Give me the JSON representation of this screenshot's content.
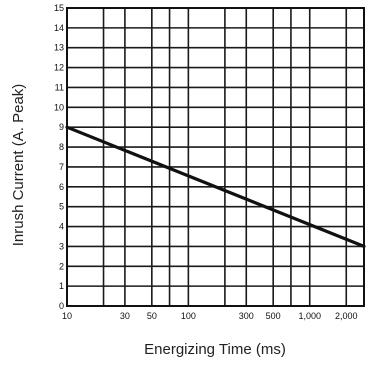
{
  "chart_data": {
    "type": "line",
    "title": "",
    "xlabel": "Energizing Time (ms)",
    "ylabel": "Inrush Current (A. Peak)",
    "x_scale": "log",
    "xlim": [
      10,
      2800
    ],
    "ylim": [
      0,
      15
    ],
    "x_gridlines": [
      10,
      20,
      30,
      50,
      70,
      100,
      200,
      300,
      500,
      700,
      1000,
      2000
    ],
    "y_gridlines": [
      0,
      1,
      2,
      3,
      4,
      5,
      6,
      7,
      8,
      9,
      10,
      11,
      12,
      13,
      14,
      15
    ],
    "x_ticks": [
      {
        "value": 10,
        "label": "10"
      },
      {
        "value": 30,
        "label": "30"
      },
      {
        "value": 50,
        "label": "50"
      },
      {
        "value": 100,
        "label": "100"
      },
      {
        "value": 300,
        "label": "300"
      },
      {
        "value": 500,
        "label": "500"
      },
      {
        "value": 1000,
        "label": "1,000"
      },
      {
        "value": 2000,
        "label": "2,000"
      }
    ],
    "y_ticks": [
      "0",
      "1",
      "2",
      "3",
      "4",
      "5",
      "6",
      "7",
      "8",
      "9",
      "10",
      "11",
      "12",
      "13",
      "14",
      "15"
    ],
    "grid": true,
    "legend": "none",
    "series": [
      {
        "color": "#111111",
        "points": [
          [
            10,
            9
          ],
          [
            2800,
            3
          ]
        ]
      }
    ]
  }
}
